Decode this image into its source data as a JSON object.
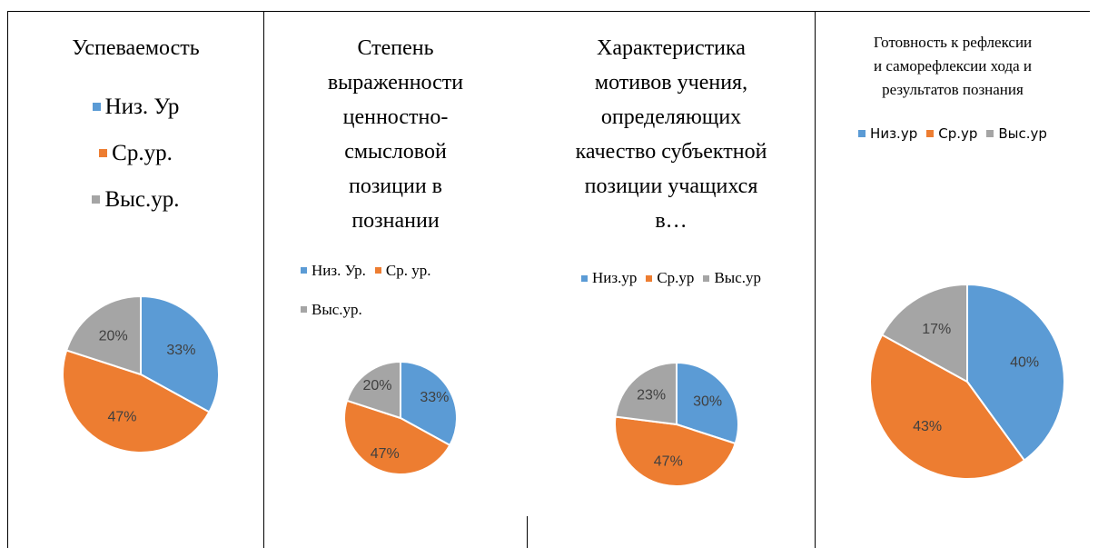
{
  "chart_data": [
    {
      "type": "pie",
      "title": "Успеваемость",
      "categories": [
        "Низ. Ур",
        "Ср.ур.",
        "Выс.ур."
      ],
      "values": [
        33,
        47,
        20
      ],
      "value_labels": [
        "33%",
        "47%",
        "20%"
      ],
      "colors": [
        "#5b9bd5",
        "#ed7d31",
        "#a5a5a5"
      ]
    },
    {
      "type": "pie",
      "title": "Степень выраженности ценностно-смысловой позиции в познании",
      "categories": [
        "Низ. Ур.",
        "Ср. ур.",
        "Выс.ур."
      ],
      "values": [
        33,
        47,
        20
      ],
      "value_labels": [
        "33%",
        "47%",
        "20%"
      ],
      "colors": [
        "#5b9bd5",
        "#ed7d31",
        "#a5a5a5"
      ]
    },
    {
      "type": "pie",
      "title": "Характеристика мотивов учения, определяющих качество субъектной позиции учащихся в…",
      "categories": [
        "Низ.ур",
        "Ср.ур",
        "Выс.ур"
      ],
      "values": [
        30,
        47,
        23
      ],
      "value_labels": [
        "30%",
        "47%",
        "23%"
      ],
      "colors": [
        "#5b9bd5",
        "#ed7d31",
        "#a5a5a5"
      ]
    },
    {
      "type": "pie",
      "title": "Готовность к рефлексии и саморефлексии хода и результатов познания",
      "categories": [
        "Низ.ур",
        "Ср.ур",
        "Выс.ур"
      ],
      "values": [
        40,
        43,
        17
      ],
      "value_labels": [
        "40%",
        "43%",
        "17%"
      ],
      "colors": [
        "#5b9bd5",
        "#ed7d31",
        "#a5a5a5"
      ]
    }
  ]
}
